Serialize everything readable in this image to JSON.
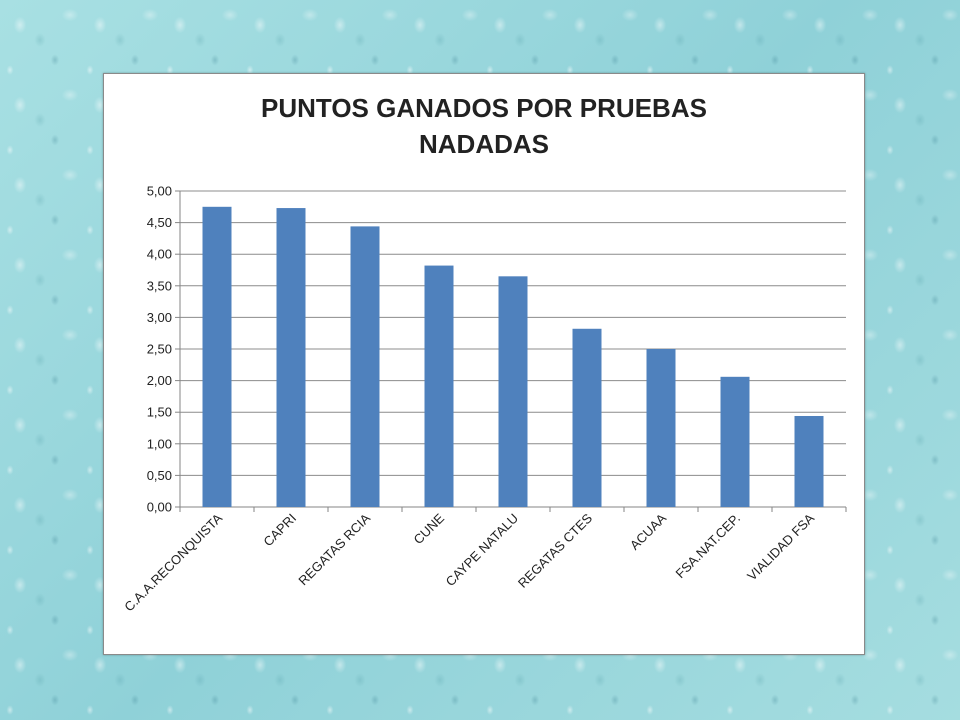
{
  "chart_data": {
    "type": "bar",
    "title_lines": [
      "PUNTOS GANADOS POR PRUEBAS",
      "NADADAS"
    ],
    "categories": [
      "C.A.A.RECONQUISTA",
      "CAPRI",
      "REGATAS RCIA",
      "CUNE",
      "CAYPE NATALU",
      "REGATAS CTES",
      "ACUAA",
      "FSA.NAT.CEP.",
      "VIALIDAD FSA"
    ],
    "values": [
      4.75,
      4.73,
      4.44,
      3.82,
      3.65,
      2.82,
      2.5,
      2.06,
      1.44
    ],
    "ylim": [
      0,
      5
    ],
    "yticks": [
      "0,00",
      "0,50",
      "1,00",
      "1,50",
      "2,00",
      "2,50",
      "3,00",
      "3,50",
      "4,00",
      "4,50",
      "5,00"
    ],
    "grid": true,
    "legend": false,
    "bar_color": "#4f81bd"
  }
}
